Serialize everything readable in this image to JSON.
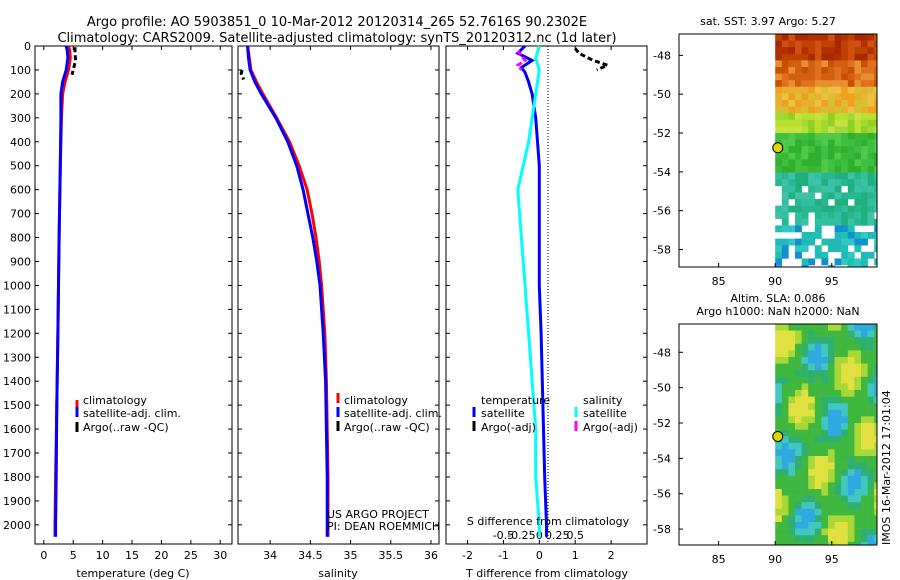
{
  "header": {
    "title_line1": "Argo profile: AO 5903851_0 10-Mar-2012 20120314_265 52.7616S 90.2302E",
    "title_line2": "Climatology: CARS2009. Satellite-adjusted climatology: synTS_20120312.nc (1d later)"
  },
  "depth_axis": {
    "ticks": [
      0,
      100,
      200,
      300,
      400,
      500,
      600,
      700,
      800,
      900,
      1000,
      1100,
      1200,
      1300,
      1400,
      1500,
      1600,
      1700,
      1800,
      1900,
      2000
    ],
    "range": [
      0,
      2080
    ]
  },
  "colors": {
    "climatology": "#ff0000",
    "satellite": "#0000ff",
    "argo": "#000000",
    "salinity_satellite": "#00ffff",
    "salinity_argo": "#ff00ff"
  },
  "chart_data": [
    {
      "type": "line",
      "id": "temperature",
      "xlabel": "temperature (deg C)",
      "xlim": [
        -1.5,
        32
      ],
      "xticks": [
        0,
        5,
        10,
        15,
        20,
        25,
        30
      ],
      "ylabel": "",
      "legend": [
        "climatology",
        "satellite-adj. clim.",
        "Argo(..raw -QC)"
      ],
      "series": [
        {
          "name": "climatology",
          "depth": [
            0,
            20,
            50,
            100,
            150,
            200,
            300,
            500,
            800,
            1000,
            1200,
            1500,
            1800,
            2000,
            2050
          ],
          "values": [
            4.2,
            4.4,
            4.5,
            4.2,
            3.6,
            3.2,
            3.0,
            2.8,
            2.6,
            2.5,
            2.4,
            2.2,
            2.0,
            1.9,
            1.9
          ]
        },
        {
          "name": "satellite-adj. clim.",
          "depth": [
            0,
            20,
            50,
            100,
            150,
            200,
            300,
            500,
            800,
            1000,
            1200,
            1500,
            1800,
            2000,
            2050
          ],
          "values": [
            3.8,
            4.0,
            4.1,
            3.8,
            3.2,
            2.9,
            2.9,
            2.8,
            2.6,
            2.5,
            2.4,
            2.2,
            2.1,
            2.0,
            2.0
          ]
        },
        {
          "name": "Argo(..raw -QC)",
          "depth": [
            5,
            30,
            60,
            80,
            100,
            120
          ],
          "values": [
            5.3,
            5.3,
            5.4,
            5.2,
            5.0,
            4.8
          ]
        }
      ]
    },
    {
      "type": "line",
      "id": "salinity",
      "xlabel": "salinity",
      "xlim": [
        33.6,
        36.1
      ],
      "xticks": [
        34,
        34.5,
        35,
        35.5,
        36
      ],
      "ylabel": "",
      "legend": [
        "climatology",
        "satellite-adj. clim.",
        "Argo(..raw -QC)"
      ],
      "credit": [
        "US ARGO PROJECT",
        "PI: DEAN ROEMMICH"
      ],
      "series": [
        {
          "name": "climatology",
          "depth": [
            0,
            50,
            100,
            150,
            200,
            300,
            400,
            500,
            600,
            700,
            800,
            900,
            1000,
            1200,
            1400,
            1600,
            1800,
            2000,
            2050
          ],
          "values": [
            33.72,
            33.74,
            33.76,
            33.83,
            33.91,
            34.08,
            34.24,
            34.36,
            34.46,
            34.52,
            34.57,
            34.61,
            34.64,
            34.68,
            34.7,
            34.71,
            34.72,
            34.72,
            34.72
          ]
        },
        {
          "name": "satellite-adj. clim.",
          "depth": [
            0,
            50,
            100,
            150,
            200,
            300,
            400,
            500,
            600,
            700,
            800,
            900,
            1000,
            1200,
            1400,
            1600,
            1800,
            2000,
            2050
          ],
          "values": [
            33.72,
            33.73,
            33.75,
            33.81,
            33.89,
            34.07,
            34.22,
            34.33,
            34.41,
            34.47,
            34.53,
            34.58,
            34.62,
            34.66,
            34.69,
            34.7,
            34.71,
            34.71,
            34.71
          ]
        },
        {
          "name": "Argo(..raw -QC)",
          "depth": [
            100,
            115,
            130,
            140
          ],
          "values": [
            33.65,
            33.64,
            33.66,
            33.67
          ]
        }
      ]
    },
    {
      "type": "line",
      "id": "difference",
      "xlabel": "T difference from climatology",
      "xlabel_top": "S difference from climatology",
      "xlim": [
        -2.6,
        3
      ],
      "xticks": [
        -2,
        -1,
        0,
        1,
        2
      ],
      "xticks_top": [
        "-0.5",
        "-0.25",
        "0",
        "0.25",
        "0.5"
      ],
      "legend_temperature": [
        "temperature",
        "satellite",
        "Argo(-adj)"
      ],
      "legend_salinity": [
        "salinity",
        "satellite",
        "Argo(-adj)"
      ],
      "series": [
        {
          "name": "temperature satellite",
          "depth": [
            0,
            30,
            60,
            90,
            110,
            150,
            200,
            300,
            500,
            800,
            1000,
            1200,
            1500,
            1800,
            2000,
            2050
          ],
          "values": [
            -0.4,
            -0.6,
            -0.2,
            -0.5,
            -0.4,
            -0.3,
            -0.2,
            -0.1,
            0,
            0,
            0,
            0.05,
            0.1,
            0.15,
            0.2,
            0.2
          ]
        },
        {
          "name": "temperature Argo(-adj)",
          "depth": [
            10,
            30,
            60,
            80,
            100
          ],
          "values": [
            1.0,
            1.1,
            1.5,
            1.9,
            1.6
          ]
        },
        {
          "name": "salinity satellite",
          "depth": [
            0,
            50,
            100,
            200,
            400,
            600,
            800,
            1000,
            1200,
            1400,
            1600,
            1800,
            2000,
            2050
          ],
          "values": [
            0,
            -0.05,
            0,
            -0.05,
            -0.15,
            -0.3,
            -0.25,
            -0.2,
            -0.15,
            -0.1,
            -0.05,
            -0.05,
            0,
            0
          ]
        },
        {
          "name": "salinity Argo(-adj)",
          "depth": [
            20,
            40,
            60,
            80,
            100
          ],
          "values": [
            -0.3,
            -0.25,
            -0.2,
            -0.3,
            -0.25
          ]
        }
      ]
    },
    {
      "type": "heatmap",
      "id": "sst-map",
      "title": "sat. SST: 3.97 Argo: 5.27",
      "xlim": [
        81.5,
        99
      ],
      "ylim": [
        -58.9,
        -46.9
      ],
      "xticks": [
        85,
        90,
        95
      ],
      "yticks": [
        -48,
        -50,
        -52,
        -54,
        -56,
        -58
      ],
      "marker": {
        "lon": 90.23,
        "lat": -52.76
      }
    },
    {
      "type": "heatmap",
      "id": "sla-map",
      "title_line1": "Altim. SLA: 0.086",
      "title_line2": "Argo h1000: NaN h2000: NaN",
      "xlim": [
        81.5,
        99
      ],
      "ylim": [
        -58.9,
        -46.4
      ],
      "xticks": [
        85,
        90,
        95
      ],
      "yticks": [
        -48,
        -50,
        -52,
        -54,
        -56,
        -58
      ],
      "marker": {
        "lon": 90.23,
        "lat": -52.76
      }
    }
  ],
  "watermark": "IMOS 16-Mar-2012 17:01:04"
}
